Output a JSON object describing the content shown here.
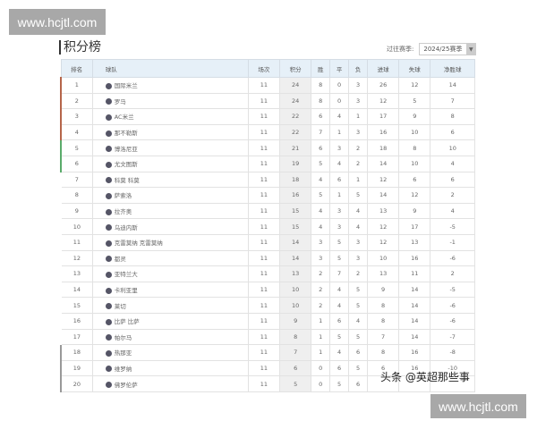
{
  "watermark": "www.hcjtl.com",
  "title": "积分榜",
  "season_label": "过往赛季:",
  "season_value": "2024/25赛季",
  "colors": {
    "ucl": "#b5654a",
    "uel": "#5aab6b",
    "relegation": "#999999",
    "points_col": "#efefef",
    "header": "#e6f0f8"
  },
  "headers": [
    "排名",
    "球队",
    "场次",
    "积分",
    "胜",
    "平",
    "负",
    "进球",
    "失球",
    "净胜球"
  ],
  "rows": [
    [
      "1",
      "国际米兰",
      "11",
      "24",
      "8",
      "0",
      "3",
      "26",
      "12",
      "14"
    ],
    [
      "2",
      "罗马",
      "11",
      "24",
      "8",
      "0",
      "3",
      "12",
      "5",
      "7"
    ],
    [
      "3",
      "AC米兰",
      "11",
      "22",
      "6",
      "4",
      "1",
      "17",
      "9",
      "8"
    ],
    [
      "4",
      "那不勒斯",
      "11",
      "22",
      "7",
      "1",
      "3",
      "16",
      "10",
      "6"
    ],
    [
      "5",
      "博洛尼亚",
      "11",
      "21",
      "6",
      "3",
      "2",
      "18",
      "8",
      "10"
    ],
    [
      "6",
      "尤文图斯",
      "11",
      "19",
      "5",
      "4",
      "2",
      "14",
      "10",
      "4"
    ],
    [
      "7",
      "科莫 科莫",
      "11",
      "18",
      "4",
      "6",
      "1",
      "12",
      "6",
      "6"
    ],
    [
      "8",
      "萨索洛",
      "11",
      "16",
      "5",
      "1",
      "5",
      "14",
      "12",
      "2"
    ],
    [
      "9",
      "拉齐奥",
      "11",
      "15",
      "4",
      "3",
      "4",
      "13",
      "9",
      "4"
    ],
    [
      "10",
      "乌迪内斯",
      "11",
      "15",
      "4",
      "3",
      "4",
      "12",
      "17",
      "-5"
    ],
    [
      "11",
      "克雷莫纳 克雷莫纳",
      "11",
      "14",
      "3",
      "5",
      "3",
      "12",
      "13",
      "-1"
    ],
    [
      "12",
      "都灵",
      "11",
      "14",
      "3",
      "5",
      "3",
      "10",
      "16",
      "-6"
    ],
    [
      "13",
      "亚特兰大",
      "11",
      "13",
      "2",
      "7",
      "2",
      "13",
      "11",
      "2"
    ],
    [
      "14",
      "卡利亚里",
      "11",
      "10",
      "2",
      "4",
      "5",
      "9",
      "14",
      "-5"
    ],
    [
      "15",
      "莱切",
      "11",
      "10",
      "2",
      "4",
      "5",
      "8",
      "14",
      "-6"
    ],
    [
      "16",
      "比萨 比萨",
      "11",
      "9",
      "1",
      "6",
      "4",
      "8",
      "14",
      "-6"
    ],
    [
      "17",
      "帕尔马",
      "11",
      "8",
      "1",
      "5",
      "5",
      "7",
      "14",
      "-7"
    ],
    [
      "18",
      "热那亚",
      "11",
      "7",
      "1",
      "4",
      "6",
      "8",
      "16",
      "-8"
    ],
    [
      "19",
      "维罗纳",
      "11",
      "6",
      "0",
      "6",
      "5",
      "6",
      "16",
      "-10"
    ],
    [
      "20",
      "佛罗伦萨",
      "11",
      "5",
      "0",
      "5",
      "6",
      "",
      "",
      ""
    ]
  ],
  "credit": "头条 @英超那些事"
}
